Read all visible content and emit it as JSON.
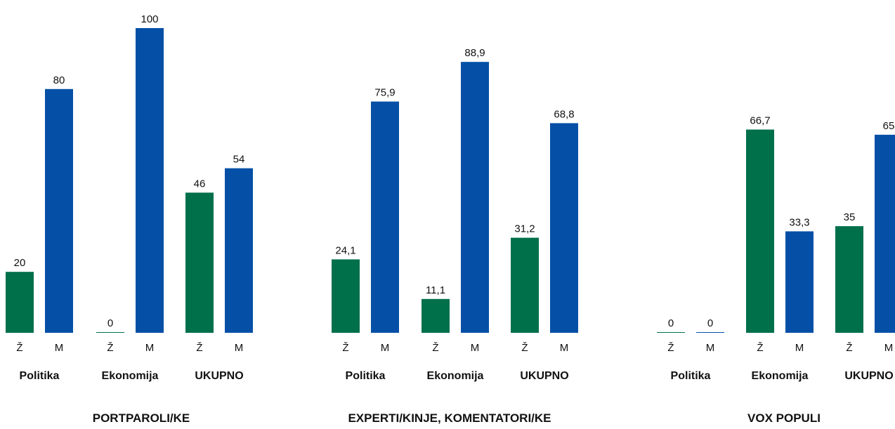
{
  "colors": {
    "female": "#00704A",
    "male": "#0550A6"
  },
  "chart_data": [
    {
      "type": "bar",
      "title": "PORTPAROLI/KE",
      "categories": [
        "Politika",
        "Ekonomija",
        "UKUPNO"
      ],
      "bar_labels": [
        "Ž",
        "M"
      ],
      "series": [
        {
          "name": "Ž",
          "values": [
            20,
            0,
            46
          ]
        },
        {
          "name": "M",
          "values": [
            80,
            100,
            54
          ]
        }
      ],
      "value_labels": [
        [
          "20",
          "80"
        ],
        [
          "0",
          "100"
        ],
        [
          "46",
          "54"
        ]
      ],
      "ylim": [
        0,
        100
      ]
    },
    {
      "type": "bar",
      "title": "EXPERTI/KINJE, KOMENTATORI/KE",
      "categories": [
        "Politika",
        "Ekonomija",
        "UKUPNO"
      ],
      "bar_labels": [
        "Ž",
        "M"
      ],
      "series": [
        {
          "name": "Ž",
          "values": [
            24.1,
            11.1,
            31.2
          ]
        },
        {
          "name": "M",
          "values": [
            75.9,
            88.9,
            68.8
          ]
        }
      ],
      "value_labels": [
        [
          "24,1",
          "75,9"
        ],
        [
          "11,1",
          "88,9"
        ],
        [
          "31,2",
          "68,8"
        ]
      ],
      "ylim": [
        0,
        100
      ]
    },
    {
      "type": "bar",
      "title": "VOX POPULI",
      "categories": [
        "Politika",
        "Ekonomija",
        "UKUPNO"
      ],
      "bar_labels": [
        "Ž",
        "M"
      ],
      "series": [
        {
          "name": "Ž",
          "values": [
            0,
            66.7,
            35
          ]
        },
        {
          "name": "M",
          "values": [
            0,
            33.3,
            65
          ]
        }
      ],
      "value_labels": [
        [
          "0",
          "0"
        ],
        [
          "66,7",
          "33,3"
        ],
        [
          "35",
          "65"
        ]
      ],
      "ylim": [
        0,
        100
      ]
    }
  ]
}
